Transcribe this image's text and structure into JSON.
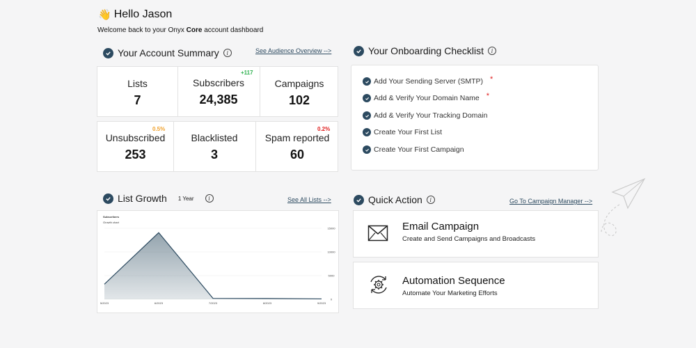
{
  "greeting": {
    "emoji": "👋",
    "text": "Hello Jason"
  },
  "welcome": {
    "prefix": "Welcome back to your Onyx ",
    "brand": "Core",
    "suffix": " account dashboard"
  },
  "account_summary": {
    "title": "Your Account Summary",
    "link": "See Audience Overview -->",
    "stats_top": [
      {
        "label": "Lists",
        "value": "7"
      },
      {
        "label": "Subscribers",
        "value": "24,385",
        "delta": "+117"
      },
      {
        "label": "Campaigns",
        "value": "102"
      }
    ],
    "stats_bottom": [
      {
        "label": "Unsubscribed",
        "value": "253",
        "delta": "0.5%"
      },
      {
        "label": "Blacklisted",
        "value": "3"
      },
      {
        "label": "Spam reported",
        "value": "60",
        "delta": "0.2%"
      }
    ]
  },
  "onboarding": {
    "title": "Your Onboarding Checklist",
    "items": [
      {
        "label": "Add Your Sending Server (SMTP)",
        "required": "*"
      },
      {
        "label": "Add & Verify Your Domain Name",
        "required": "*"
      },
      {
        "label": "Add & Verify Your Tracking Domain"
      },
      {
        "label": "Create Your First List"
      },
      {
        "label": "Create Your First Campaign"
      }
    ]
  },
  "list_growth": {
    "title": "List Growth",
    "period": "1 Year",
    "link": "See All Lists -->",
    "chart_title": "Subscribers",
    "chart_subtitle": "Growth chart"
  },
  "chart_data": {
    "type": "area",
    "title": "Subscribers",
    "subtitle": "Growth chart",
    "x": [
      "5/2023",
      "6/2023",
      "7/2023",
      "8/2023",
      "9/2023"
    ],
    "values": [
      5800,
      25600,
      350,
      300,
      150
    ],
    "y_ticks": [
      "15000",
      "10000",
      "5000",
      "0"
    ],
    "ylim": [
      0,
      15000
    ],
    "color": "#3d5a6c"
  },
  "quick_action": {
    "title": "Quick Action",
    "link": "Go To Campaign Manager -->",
    "items": [
      {
        "title": "Email Campaign",
        "subtitle": "Create and Send Campaigns and Broadcasts",
        "icon": "envelope-icon"
      },
      {
        "title": "Automation Sequence",
        "subtitle": "Automate Your Marketing Efforts",
        "icon": "gear-cycle-icon"
      }
    ]
  },
  "colors": {
    "accent": "#2c4a60",
    "positive": "#2eb14f",
    "warning": "#f0a22e",
    "danger": "#e02020"
  }
}
